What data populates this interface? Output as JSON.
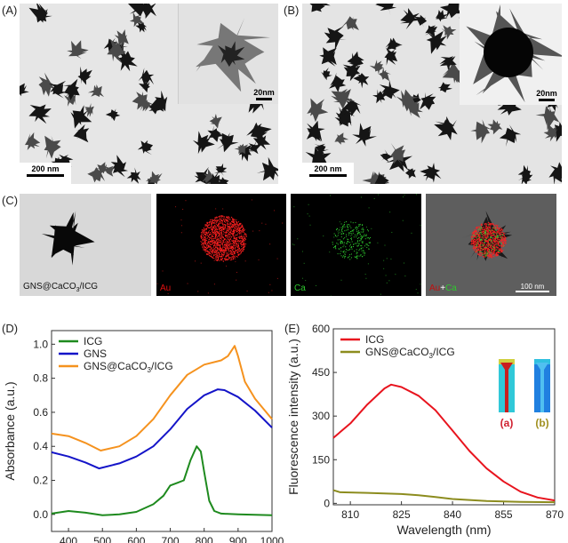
{
  "panels": {
    "a": "(A)",
    "b": "(B)",
    "c": "(C)",
    "d": "(D)",
    "e": "(E)"
  },
  "panel_a": {
    "scale_main": "200 nm",
    "scale_inset": "20nm"
  },
  "panel_b": {
    "scale_main": "200 nm",
    "scale_inset": "20nm"
  },
  "panel_c": {
    "tem_label": "GNS@CaCO3/ICG",
    "au_label": "Au",
    "ca_label": "Ca",
    "merge_au": "Au",
    "merge_plus": "+",
    "merge_ca": "Ca",
    "scale": "100 nm"
  },
  "chart_data": [
    {
      "type": "line",
      "xlabel": "Wavelength (nm)",
      "ylabel": "Absorbance (a.u.)",
      "xlim": [
        350,
        1000
      ],
      "ylim": [
        -0.1,
        1.08
      ],
      "xticks": [
        400,
        500,
        600,
        700,
        800,
        900,
        1000
      ],
      "yticks": [
        0.0,
        0.2,
        0.4,
        0.6,
        0.8,
        1.0
      ],
      "legend": "top-left",
      "series": [
        {
          "name": "ICG",
          "color": "#1e8a1e",
          "points": [
            [
              350,
              0.005
            ],
            [
              400,
              0.02
            ],
            [
              450,
              0.01
            ],
            [
              500,
              -0.005
            ],
            [
              550,
              0
            ],
            [
              600,
              0.015
            ],
            [
              650,
              0.06
            ],
            [
              680,
              0.11
            ],
            [
              700,
              0.17
            ],
            [
              720,
              0.185
            ],
            [
              740,
              0.2
            ],
            [
              760,
              0.32
            ],
            [
              778,
              0.4
            ],
            [
              790,
              0.37
            ],
            [
              800,
              0.25
            ],
            [
              815,
              0.08
            ],
            [
              830,
              0.02
            ],
            [
              850,
              0.005
            ],
            [
              900,
              0
            ],
            [
              1000,
              -0.005
            ]
          ]
        },
        {
          "name": "GNS",
          "color": "#1414c8",
          "points": [
            [
              350,
              0.365
            ],
            [
              400,
              0.34
            ],
            [
              450,
              0.305
            ],
            [
              490,
              0.27
            ],
            [
              550,
              0.3
            ],
            [
              600,
              0.34
            ],
            [
              650,
              0.4
            ],
            [
              700,
              0.5
            ],
            [
              750,
              0.62
            ],
            [
              800,
              0.7
            ],
            [
              840,
              0.735
            ],
            [
              860,
              0.73
            ],
            [
              900,
              0.69
            ],
            [
              950,
              0.61
            ],
            [
              1000,
              0.51
            ]
          ]
        },
        {
          "name": "GNS@CaCO3/ICG",
          "color": "#f5921e",
          "points": [
            [
              350,
              0.475
            ],
            [
              400,
              0.46
            ],
            [
              450,
              0.42
            ],
            [
              495,
              0.375
            ],
            [
              550,
              0.4
            ],
            [
              600,
              0.46
            ],
            [
              650,
              0.56
            ],
            [
              700,
              0.7
            ],
            [
              750,
              0.82
            ],
            [
              800,
              0.88
            ],
            [
              850,
              0.905
            ],
            [
              870,
              0.93
            ],
            [
              890,
              0.99
            ],
            [
              900,
              0.93
            ],
            [
              920,
              0.78
            ],
            [
              950,
              0.68
            ],
            [
              1000,
              0.56
            ]
          ]
        }
      ]
    },
    {
      "type": "line",
      "xlabel": "Wavelength (nm)",
      "ylabel": "Fluorescence intensity (a.u.)",
      "xlim": [
        805,
        870
      ],
      "ylim": [
        -5,
        600
      ],
      "xticks": [
        810,
        825,
        840,
        855,
        870
      ],
      "yticks": [
        0,
        150,
        300,
        450,
        600
      ],
      "legend": "top-left",
      "inset_labels": [
        "(a)",
        "(b)"
      ],
      "series": [
        {
          "name": "ICG",
          "color": "#e8141e",
          "points": [
            [
              805,
              225
            ],
            [
              810,
              275
            ],
            [
              815,
              340
            ],
            [
              820,
              395
            ],
            [
              822,
              408
            ],
            [
              825,
              400
            ],
            [
              830,
              370
            ],
            [
              835,
              320
            ],
            [
              840,
              250
            ],
            [
              845,
              180
            ],
            [
              850,
              120
            ],
            [
              855,
              75
            ],
            [
              860,
              40
            ],
            [
              865,
              20
            ],
            [
              870,
              10
            ]
          ]
        },
        {
          "name": "GNS@CaCO3/ICG",
          "color": "#8c8c1e",
          "points": [
            [
              805,
              45
            ],
            [
              807,
              38
            ],
            [
              815,
              36
            ],
            [
              825,
              32
            ],
            [
              830,
              28
            ],
            [
              835,
              22
            ],
            [
              840,
              15
            ],
            [
              850,
              8
            ],
            [
              860,
              5
            ],
            [
              870,
              4
            ]
          ]
        }
      ]
    }
  ]
}
